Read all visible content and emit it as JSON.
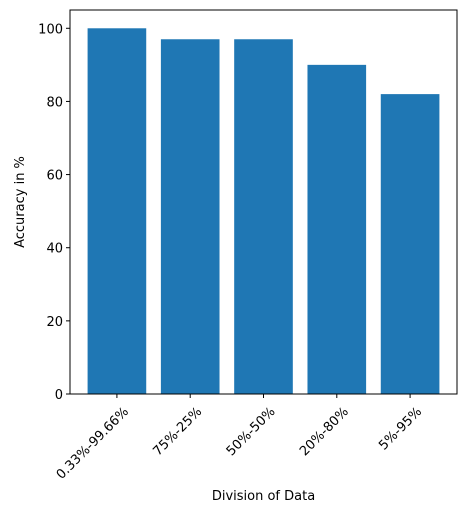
{
  "chart_data": {
    "type": "bar",
    "title": "",
    "xlabel": "Division of Data",
    "ylabel": "Accuracy in %",
    "categories": [
      "0.33%-99.66%",
      "75%-25%",
      "50%-50%",
      "20%-80%",
      "5%-95%"
    ],
    "values": [
      100,
      97,
      97,
      90,
      82
    ],
    "ylim": [
      0,
      105
    ],
    "yticks": [
      0,
      20,
      40,
      60,
      80,
      100
    ],
    "grid": false,
    "legend": "none",
    "bar_color": "#1f77b4"
  }
}
